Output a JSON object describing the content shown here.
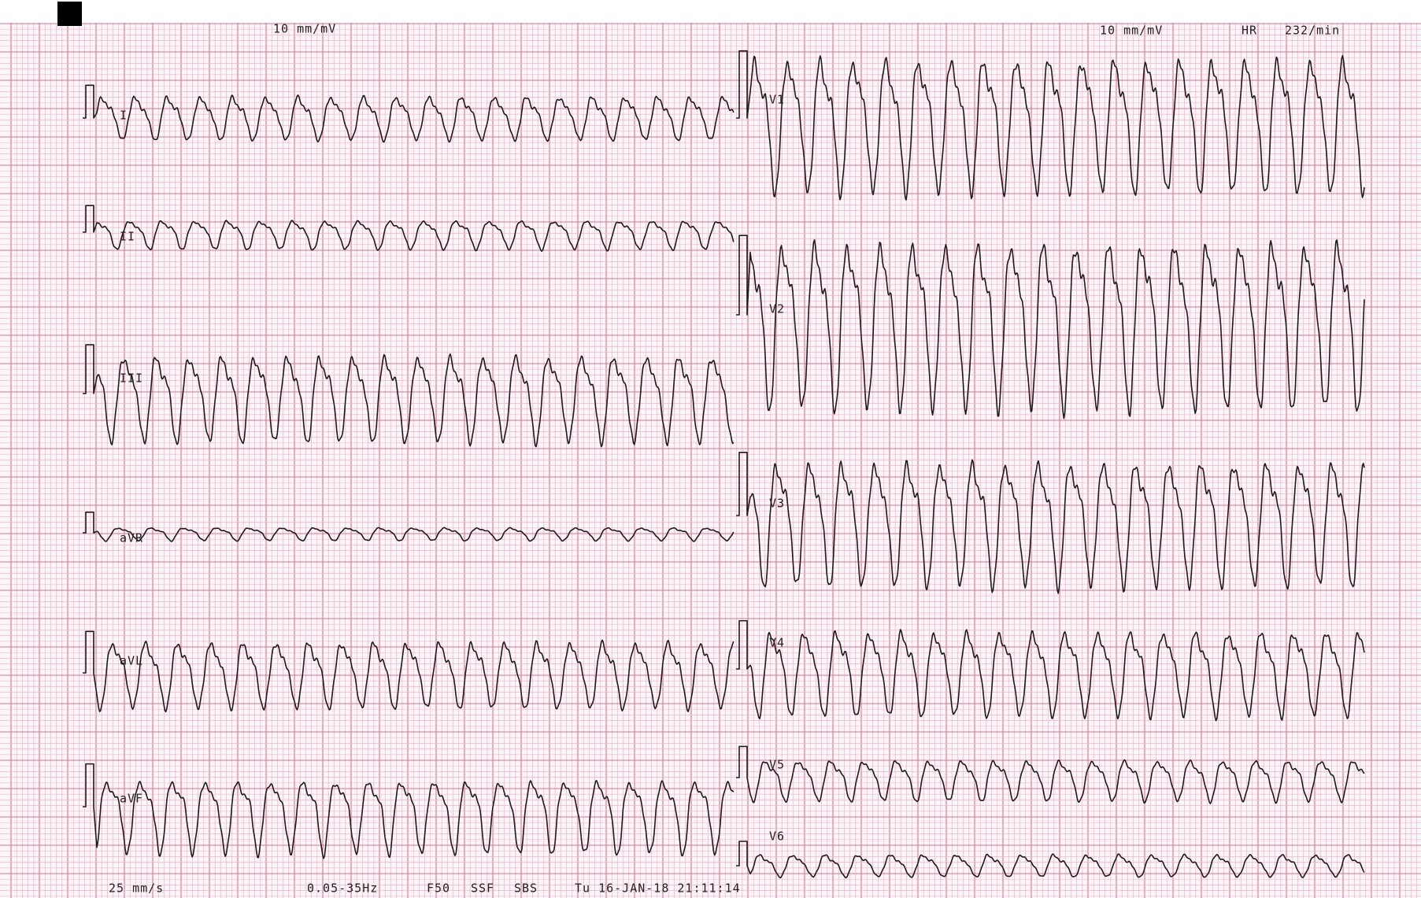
{
  "header": {
    "left_gain": "10 mm/mV",
    "right_gain": "10 mm/mV",
    "hr_label": "HR",
    "hr_value": "232/min"
  },
  "leads": [
    "I",
    "II",
    "III",
    "aVR",
    "aVL",
    "aVF",
    "V1",
    "V2",
    "V3",
    "V4",
    "V5",
    "V6"
  ],
  "footer": {
    "speed": "25 mm/s",
    "filter": "0.05-35Hz",
    "mains": "F50",
    "ssf": "SSF",
    "sbs": "SBS",
    "timestamp": "Tu 16-JAN-18 21:11:14"
  }
}
